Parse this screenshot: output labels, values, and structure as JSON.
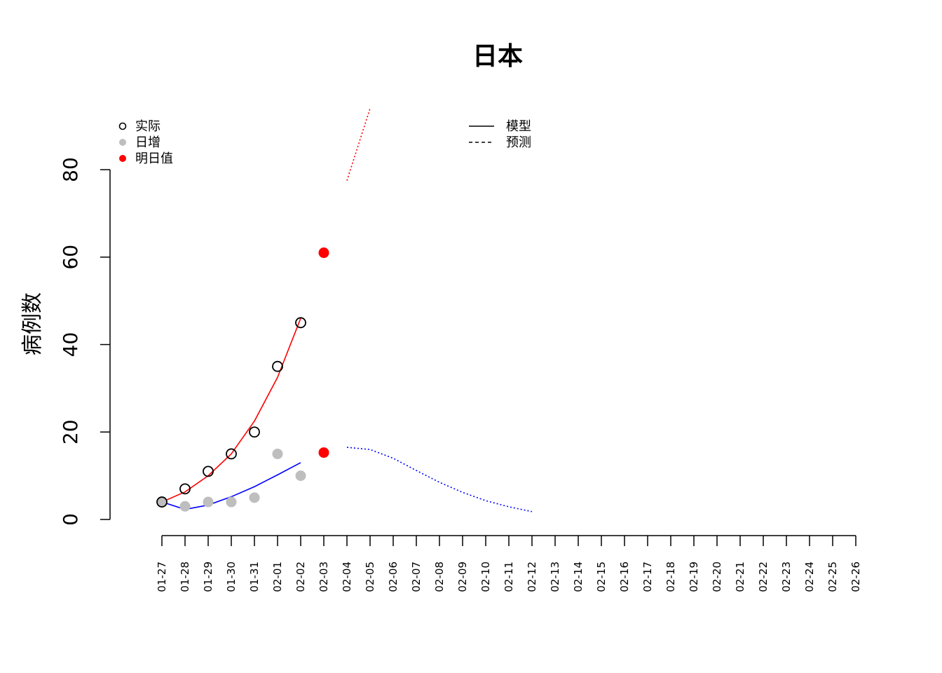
{
  "chart_data": {
    "type": "line",
    "title": "日本",
    "xlabel": "",
    "ylabel": "病例数",
    "ylim": [
      0,
      80
    ],
    "yticks": [
      0,
      20,
      40,
      60,
      80
    ],
    "categories": [
      "01-27",
      "01-28",
      "01-29",
      "01-30",
      "01-31",
      "02-01",
      "02-02",
      "02-03",
      "02-04",
      "02-05",
      "02-06",
      "02-07",
      "02-08",
      "02-09",
      "02-10",
      "02-11",
      "02-12",
      "02-13",
      "02-14",
      "02-15",
      "02-16",
      "02-17",
      "02-18",
      "02-19",
      "02-20",
      "02-21",
      "02-22",
      "02-23",
      "02-24",
      "02-25",
      "02-26"
    ],
    "points": {
      "actual": {
        "x": [
          "01-27",
          "01-28",
          "01-29",
          "01-30",
          "01-31",
          "02-01",
          "02-02"
        ],
        "values": [
          4,
          7,
          11,
          15,
          20,
          35,
          45
        ],
        "color": "#000000"
      },
      "daily": {
        "x": [
          "01-27",
          "01-28",
          "01-29",
          "01-30",
          "01-31",
          "02-01",
          "02-02"
        ],
        "values": [
          4,
          3,
          4,
          4,
          5,
          15,
          10
        ],
        "color": "#bebebe"
      },
      "tomorrow": {
        "x": [
          "02-03",
          "02-03"
        ],
        "values": [
          61,
          15.3
        ],
        "color": "#ff0000"
      }
    },
    "lines": [
      {
        "style": "solid",
        "color": "#ff0000",
        "x": [
          "01-27",
          "01-28",
          "01-29",
          "01-30",
          "01-31",
          "02-01",
          "02-02"
        ],
        "values": [
          4,
          6.3,
          10,
          15,
          22.5,
          32.5,
          46
        ]
      },
      {
        "style": "solid",
        "color": "#0000ff",
        "x": [
          "01-27",
          "01-28",
          "01-29",
          "01-30",
          "01-31",
          "02-01",
          "02-02"
        ],
        "values": [
          4,
          2.3,
          3.3,
          5.2,
          7.5,
          10.2,
          13
        ]
      },
      {
        "style": "dotted",
        "color": "#ff0000",
        "x": [
          "02-04",
          "02-05"
        ],
        "values": [
          77.5,
          94
        ]
      },
      {
        "style": "dotted",
        "color": "#0000ff",
        "x": [
          "02-04",
          "02-05",
          "02-06",
          "02-07",
          "02-08",
          "02-09",
          "02-10",
          "02-11",
          "02-12"
        ],
        "values": [
          16.5,
          16,
          14,
          11.2,
          8.5,
          6.2,
          4.3,
          2.9,
          1.8
        ]
      }
    ],
    "legend_points": {
      "position": "top-left",
      "items": [
        {
          "label": "实际",
          "marker": "open-circle",
          "color": "#000000"
        },
        {
          "label": "日增",
          "marker": "filled-circle",
          "color": "#bebebe"
        },
        {
          "label": "明日值",
          "marker": "filled-circle",
          "color": "#ff0000"
        }
      ]
    },
    "legend_lines": {
      "position": "top-center",
      "items": [
        {
          "label": "模型",
          "line": "solid",
          "color": "#000000"
        },
        {
          "label": "预测",
          "line": "dashed",
          "color": "#000000"
        }
      ]
    }
  }
}
